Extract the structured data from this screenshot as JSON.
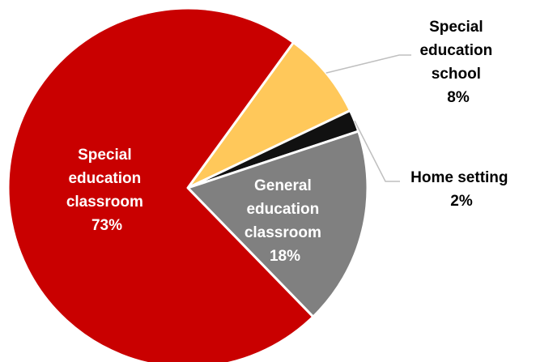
{
  "chart_data": {
    "type": "pie",
    "slices": [
      {
        "name": "Special education classroom",
        "value": 73,
        "label_lines": [
          "Special",
          "education",
          "classroom",
          "73%"
        ],
        "color": "#C90000"
      },
      {
        "name": "Special education school",
        "value": 8,
        "label_lines": [
          "Special",
          "education",
          "school",
          "8%"
        ],
        "color": "#FFC85A"
      },
      {
        "name": "Home setting",
        "value": 2,
        "label_lines": [
          "Home setting",
          "2%"
        ],
        "color": "#111111"
      },
      {
        "name": "General education classroom",
        "value": 18,
        "label_lines": [
          "General",
          "education",
          "classroom",
          "18%"
        ],
        "color": "#808080"
      }
    ],
    "slice_border_color": "#ffffff",
    "leader_line_color": "#BFBFBF"
  }
}
